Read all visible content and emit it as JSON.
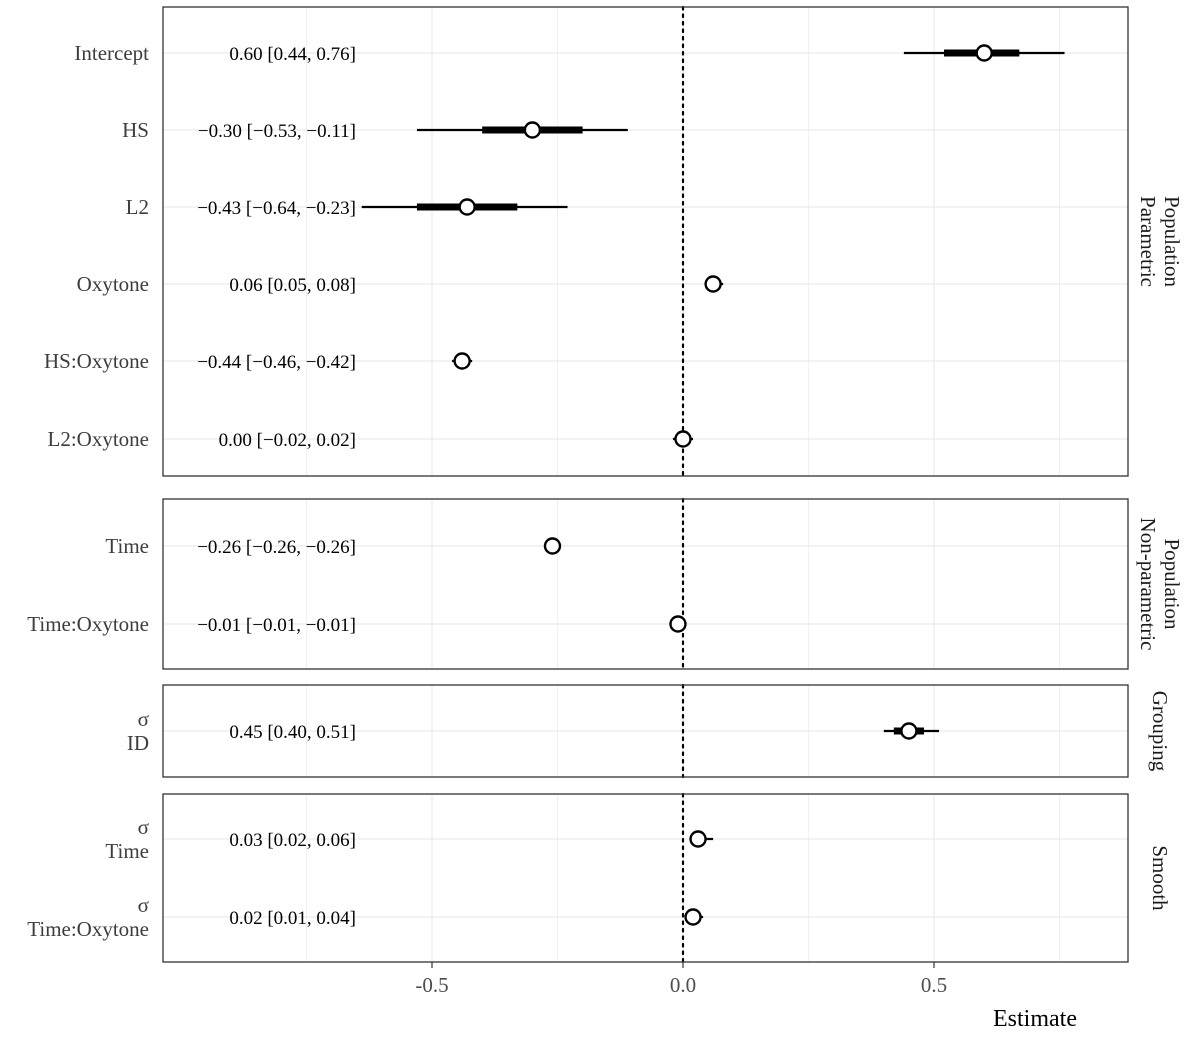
{
  "chart_data": {
    "type": "scatter",
    "subtype": "coefficient-interval-plot",
    "xlabel": "Estimate",
    "xlim": [
      -1.0,
      0.88
    ],
    "x_ticks": [
      -0.5,
      0.0,
      0.5
    ],
    "x_tick_labels": [
      "-0.5",
      "0.0",
      "0.5"
    ],
    "reference_line_x": 0,
    "grid": true,
    "panels": [
      {
        "strip": [
          "Parametric",
          "Population"
        ],
        "terms": [
          {
            "label": [
              "Intercept"
            ],
            "estimate": 0.6,
            "lower": 0.44,
            "upper": 0.76,
            "inner": [
              0.52,
              0.67
            ],
            "text": "0.60 [0.44, 0.76]"
          },
          {
            "label": [
              "HS"
            ],
            "estimate": -0.3,
            "lower": -0.53,
            "upper": -0.11,
            "inner": [
              -0.4,
              -0.2
            ],
            "text": "−0.30 [−0.53, −0.11]"
          },
          {
            "label": [
              "L2"
            ],
            "estimate": -0.43,
            "lower": -0.64,
            "upper": -0.23,
            "inner": [
              -0.53,
              -0.33
            ],
            "text": "−0.43 [−0.64, −0.23]"
          },
          {
            "label": [
              "Oxytone"
            ],
            "estimate": 0.06,
            "lower": 0.05,
            "upper": 0.08,
            "inner": [
              0.055,
              0.075
            ],
            "text": "0.06 [0.05, 0.08]"
          },
          {
            "label": [
              "HS:Oxytone"
            ],
            "estimate": -0.44,
            "lower": -0.46,
            "upper": -0.42,
            "inner": [
              -0.45,
              -0.43
            ],
            "text": "−0.44 [−0.46, −0.42]"
          },
          {
            "label": [
              "L2:Oxytone"
            ],
            "estimate": 0.0,
            "lower": -0.02,
            "upper": 0.02,
            "inner": [
              -0.01,
              0.01
            ],
            "text": "0.00 [−0.02, 0.02]"
          }
        ]
      },
      {
        "strip": [
          "Non-parametric",
          "Population"
        ],
        "terms": [
          {
            "label": [
              "Time"
            ],
            "estimate": -0.26,
            "lower": -0.26,
            "upper": -0.26,
            "inner": [
              -0.26,
              -0.26
            ],
            "text": "−0.26 [−0.26, −0.26]"
          },
          {
            "label": [
              "Time:Oxytone"
            ],
            "estimate": -0.01,
            "lower": -0.01,
            "upper": -0.01,
            "inner": [
              -0.01,
              -0.01
            ],
            "text": "−0.01 [−0.01, −0.01]"
          }
        ]
      },
      {
        "strip": [
          "Grouping"
        ],
        "terms": [
          {
            "label": [
              "σ",
              "ID"
            ],
            "estimate": 0.45,
            "lower": 0.4,
            "upper": 0.51,
            "inner": [
              0.42,
              0.48
            ],
            "text": "0.45 [0.40, 0.51]"
          }
        ]
      },
      {
        "strip": [
          "Smooth"
        ],
        "terms": [
          {
            "label": [
              "σ",
              "Time"
            ],
            "estimate": 0.03,
            "lower": 0.02,
            "upper": 0.06,
            "inner": [
              0.025,
              0.045
            ],
            "text": "0.03 [0.02, 0.06]"
          },
          {
            "label": [
              "σ",
              "Time:Oxytone"
            ],
            "estimate": 0.02,
            "lower": 0.01,
            "upper": 0.04,
            "inner": [
              0.015,
              0.03
            ],
            "text": "0.02 [0.01, 0.04]"
          }
        ]
      }
    ]
  }
}
